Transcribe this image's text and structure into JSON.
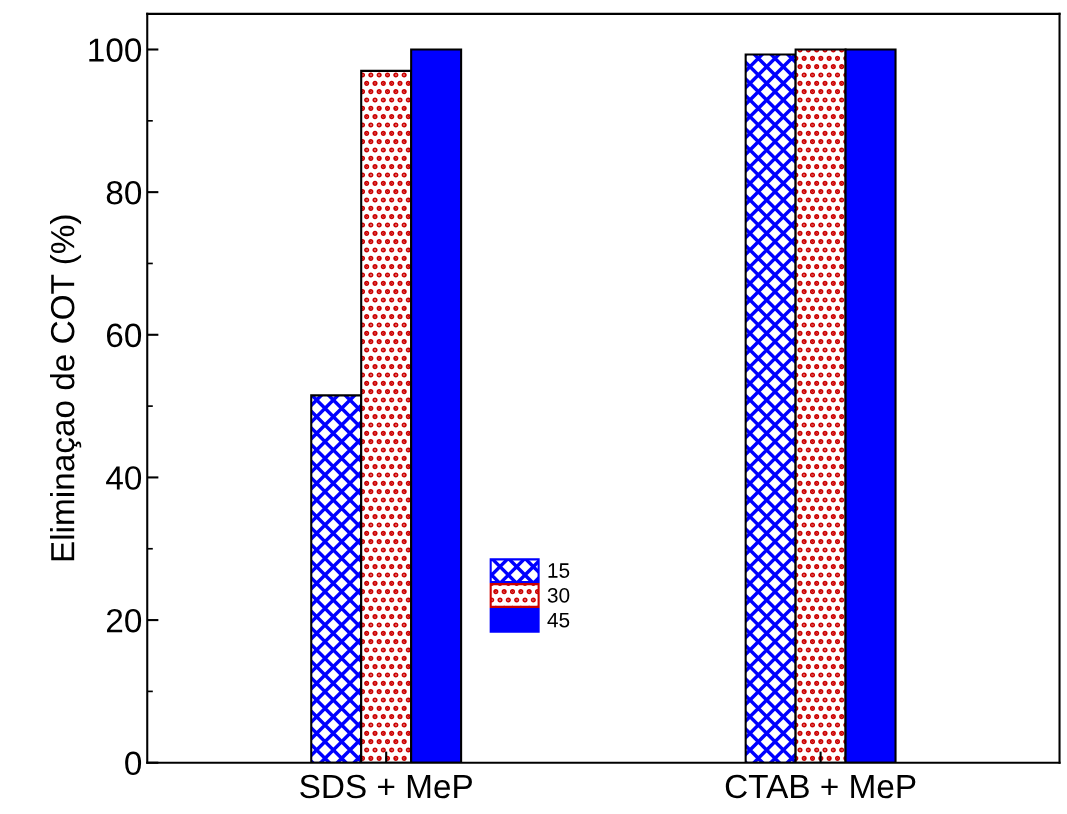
{
  "chart_data": {
    "type": "bar",
    "ylabel": "Eliminaçao de COT (%)",
    "categories": [
      "SDS + MeP",
      "CTAB + MeP"
    ],
    "series": [
      {
        "name": "15",
        "color": "#0000ff",
        "values": [
          51.5,
          99.3
        ]
      },
      {
        "name": "30",
        "color": "#cc0000",
        "values": [
          97,
          100
        ]
      },
      {
        "name": "45",
        "color": "#0000ff",
        "values": [
          100,
          100
        ]
      }
    ],
    "ylim": [
      0,
      105
    ],
    "yticks": [
      0,
      20,
      40,
      60,
      80,
      100
    ],
    "grid": false,
    "legend": "bottom"
  }
}
